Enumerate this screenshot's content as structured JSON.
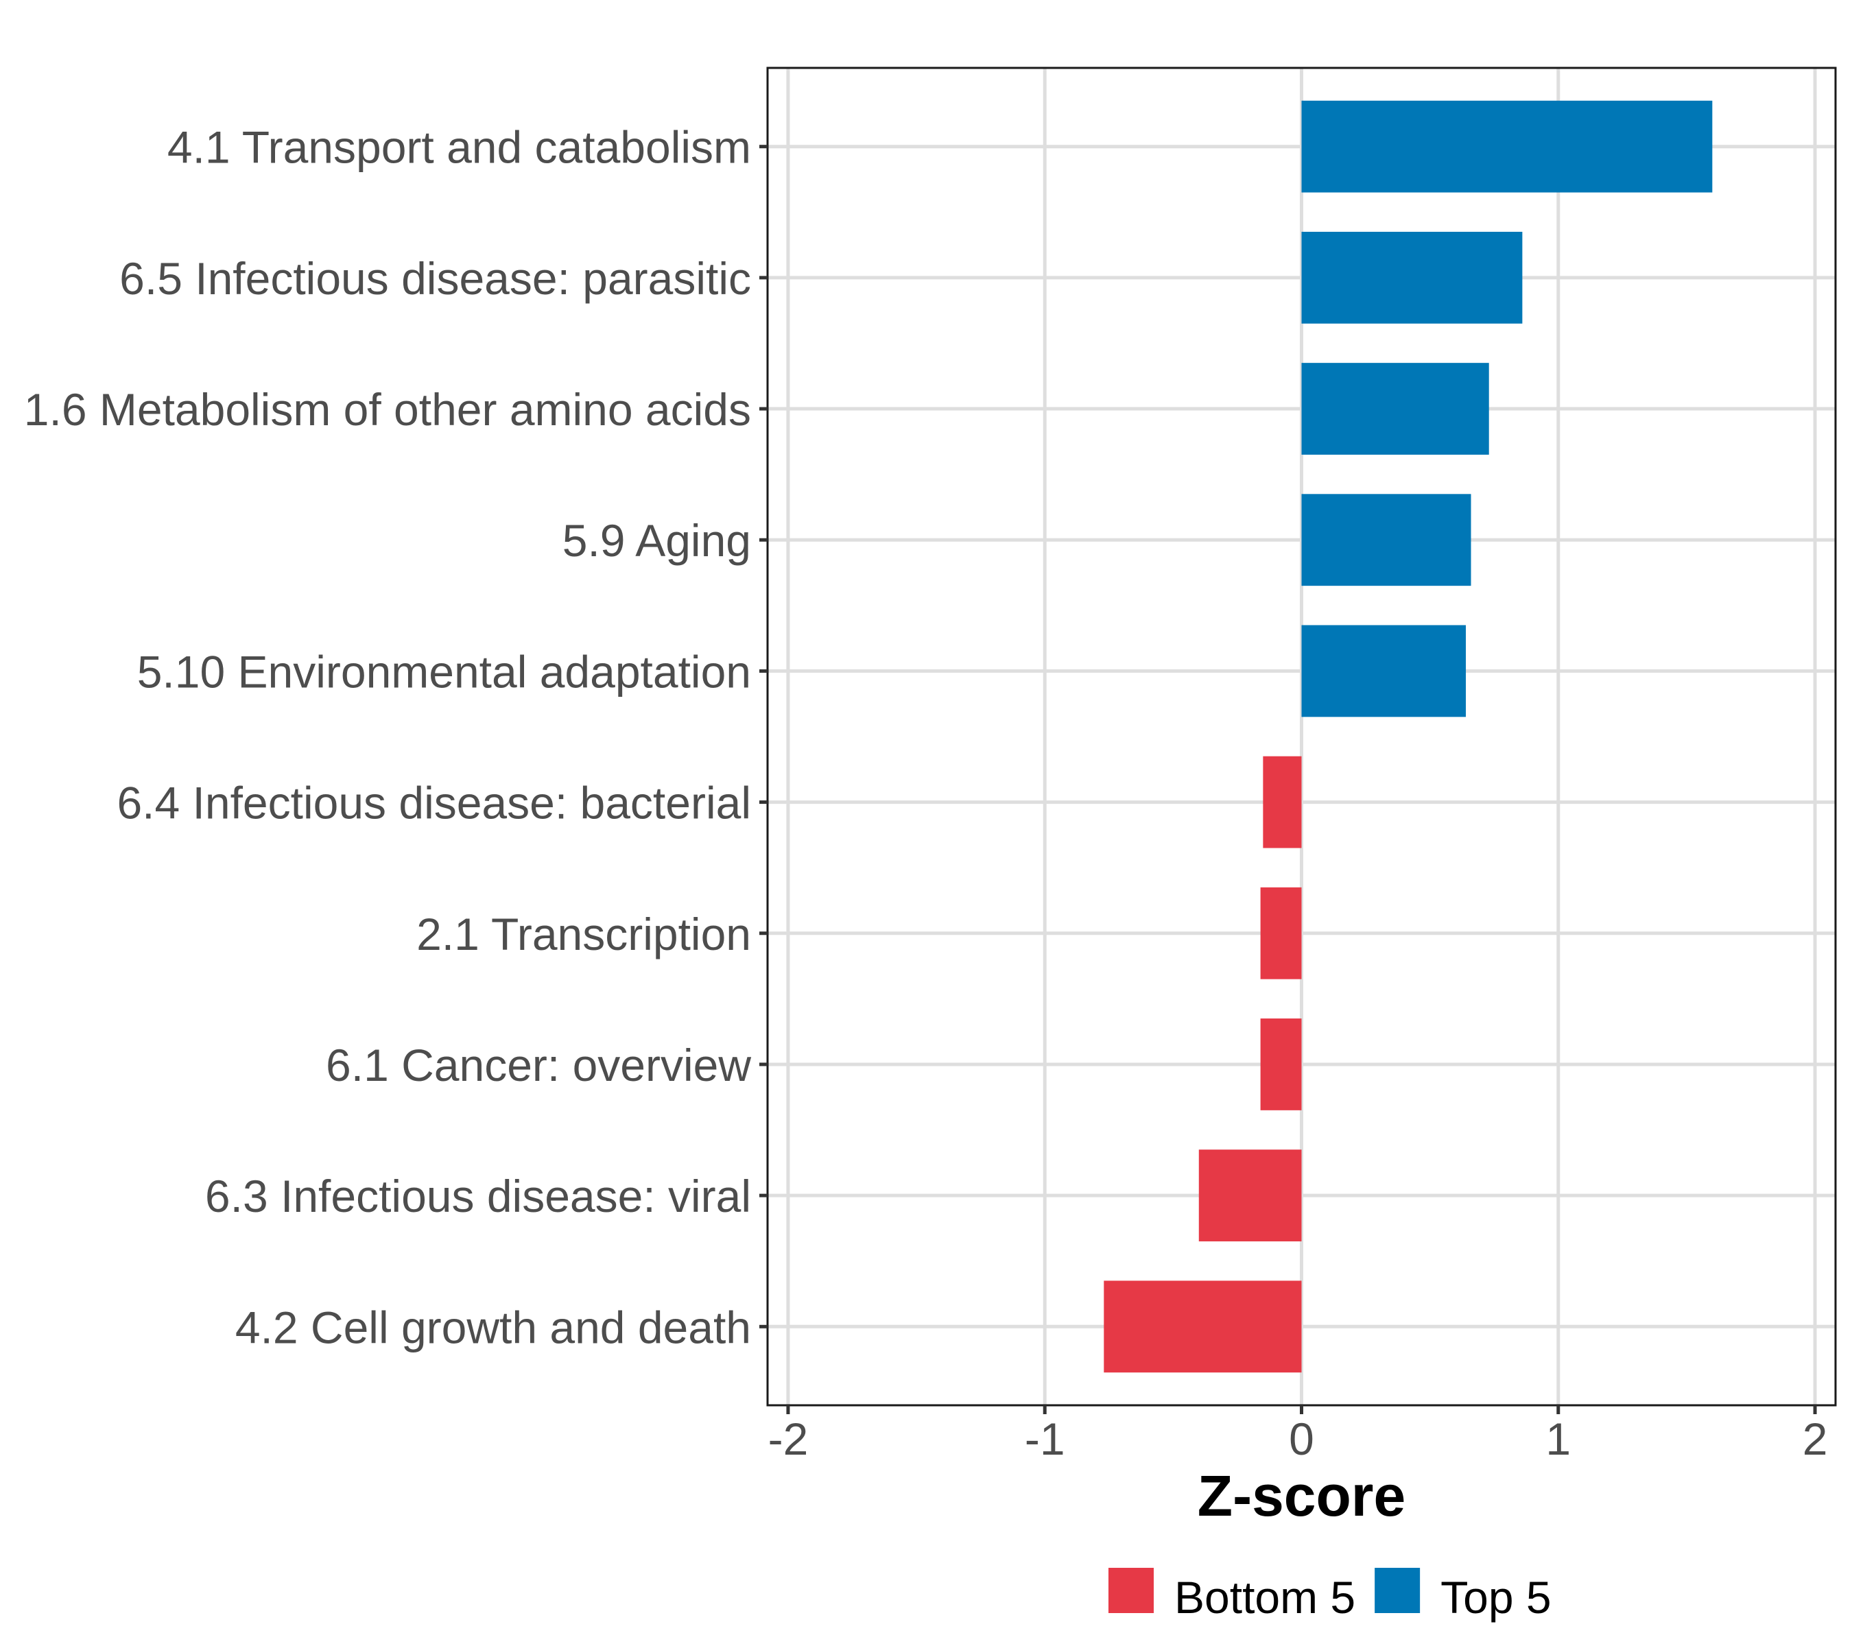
{
  "chart_data": {
    "type": "bar",
    "orientation": "horizontal",
    "title": "",
    "xlabel": "Z-score",
    "ylabel": "",
    "xlim": [
      -2.08,
      2.08
    ],
    "x_ticks": [
      -2,
      -1,
      0,
      1,
      2
    ],
    "x_tick_labels": [
      "-2",
      "-1",
      "0",
      "1",
      "2"
    ],
    "grid": true,
    "legend_position": "bottom",
    "categories": [
      "4.1 Transport and catabolism",
      "6.5 Infectious disease: parasitic",
      "1.6 Metabolism of other amino acids",
      "5.9 Aging",
      "5.10 Environmental adaptation",
      "6.4 Infectious disease: bacterial",
      "2.1 Transcription",
      "6.1 Cancer: overview",
      "6.3 Infectious disease: viral",
      "4.2 Cell growth and death"
    ],
    "values": [
      1.6,
      0.86,
      0.73,
      0.66,
      0.64,
      -0.15,
      -0.16,
      -0.16,
      -0.4,
      -0.77
    ],
    "groups": [
      "Top 5",
      "Top 5",
      "Top 5",
      "Top 5",
      "Top 5",
      "Bottom 5",
      "Bottom 5",
      "Bottom 5",
      "Bottom 5",
      "Bottom 5"
    ],
    "legend": [
      {
        "name": "Bottom 5",
        "color": "#E63946"
      },
      {
        "name": "Top 5",
        "color": "#0077B6"
      }
    ]
  },
  "colors": {
    "Top 5": "#0077B6",
    "Bottom 5": "#E63946",
    "grid": "#DEDEDE",
    "axis_text": "#4D4D4D",
    "border": "#1A1A1A"
  }
}
